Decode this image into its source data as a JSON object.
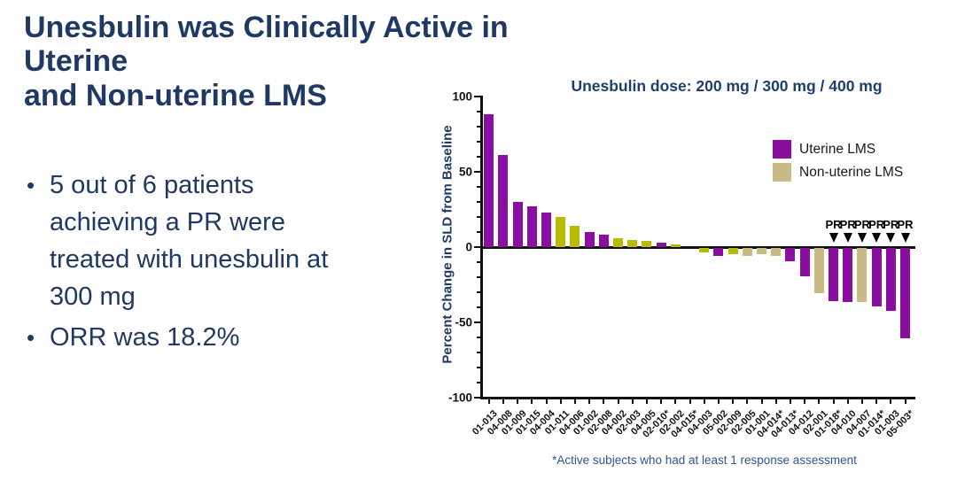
{
  "slide": {
    "title_line1": "Unesbulin was Clinically Active in Uterine",
    "title_line2": "and Non-uterine LMS",
    "bullets": [
      "5 out of 6 patients achieving a PR were treated with unesbulin at 300 mg",
      "ORR was 18.2%"
    ],
    "footnote": "*Active subjects who had at least 1 response assessment"
  },
  "colors": {
    "title_navy": "#1F3864",
    "chart_title_navy": "#1E3F6F",
    "footnote_blue": "#2F5496",
    "axis_black": "#111111"
  },
  "chart_data": {
    "type": "bar",
    "title": "Unesbulin dose: 200 mg / 300 mg / 400 mg",
    "ylabel": "Percent Change in SLD from Baseline",
    "xlabel": "",
    "ylim": [
      -100,
      100
    ],
    "ytick_major": [
      100,
      50,
      0,
      -50,
      -100
    ],
    "ytick_minor_step": 10,
    "grid": false,
    "legend_position": "upper right",
    "pr_marker_text": "PR",
    "palette": {
      "purple": "#8A0FA0",
      "olive": "#B8BC00",
      "tan": "#C9BB86"
    },
    "legend": [
      {
        "label": "Uterine LMS",
        "color_key": "purple"
      },
      {
        "label": "Non-uterine LMS",
        "color_key": "tan"
      }
    ],
    "bars": [
      {
        "id": "01-013",
        "value": 88,
        "color": "purple",
        "pr": false
      },
      {
        "id": "04-008",
        "value": 61,
        "color": "purple",
        "pr": false
      },
      {
        "id": "01-009",
        "value": 30,
        "color": "purple",
        "pr": false
      },
      {
        "id": "01-015",
        "value": 27,
        "color": "purple",
        "pr": false
      },
      {
        "id": "04-004",
        "value": 23,
        "color": "purple",
        "pr": false
      },
      {
        "id": "01-011",
        "value": 20,
        "color": "olive",
        "pr": false
      },
      {
        "id": "04-006",
        "value": 14,
        "color": "olive",
        "pr": false
      },
      {
        "id": "01-002",
        "value": 10,
        "color": "purple",
        "pr": false
      },
      {
        "id": "02-008",
        "value": 8,
        "color": "purple",
        "pr": false
      },
      {
        "id": "04-002",
        "value": 6,
        "color": "olive",
        "pr": false
      },
      {
        "id": "02-003",
        "value": 5,
        "color": "olive",
        "pr": false
      },
      {
        "id": "04-005",
        "value": 4,
        "color": "olive",
        "pr": false
      },
      {
        "id": "02-010*",
        "value": 3,
        "color": "purple",
        "pr": false
      },
      {
        "id": "02-002",
        "value": 2,
        "color": "olive",
        "pr": false
      },
      {
        "id": "04-015*",
        "value": 0,
        "color": null,
        "pr": false
      },
      {
        "id": "04-003",
        "value": -3,
        "color": "olive",
        "pr": false
      },
      {
        "id": "05-002",
        "value": -5,
        "color": "purple",
        "pr": false
      },
      {
        "id": "02-009",
        "value": -4,
        "color": "olive",
        "pr": false
      },
      {
        "id": "02-005",
        "value": -5,
        "color": "tan",
        "pr": false
      },
      {
        "id": "01-001",
        "value": -4,
        "color": "tan",
        "pr": false
      },
      {
        "id": "04-014*",
        "value": -5,
        "color": "tan",
        "pr": false
      },
      {
        "id": "04-013*",
        "value": -9,
        "color": "purple",
        "pr": false
      },
      {
        "id": "04-012",
        "value": -19,
        "color": "purple",
        "pr": false
      },
      {
        "id": "02-001",
        "value": -30,
        "color": "tan",
        "pr": false
      },
      {
        "id": "01-018*",
        "value": -35,
        "color": "purple",
        "pr": true
      },
      {
        "id": "04-010",
        "value": -36,
        "color": "purple",
        "pr": true
      },
      {
        "id": "04-007",
        "value": -36,
        "color": "tan",
        "pr": true
      },
      {
        "id": "01-014*",
        "value": -39,
        "color": "purple",
        "pr": true
      },
      {
        "id": "01-003",
        "value": -42,
        "color": "purple",
        "pr": true
      },
      {
        "id": "05-003*",
        "value": -60,
        "color": "purple",
        "pr": true
      }
    ]
  }
}
